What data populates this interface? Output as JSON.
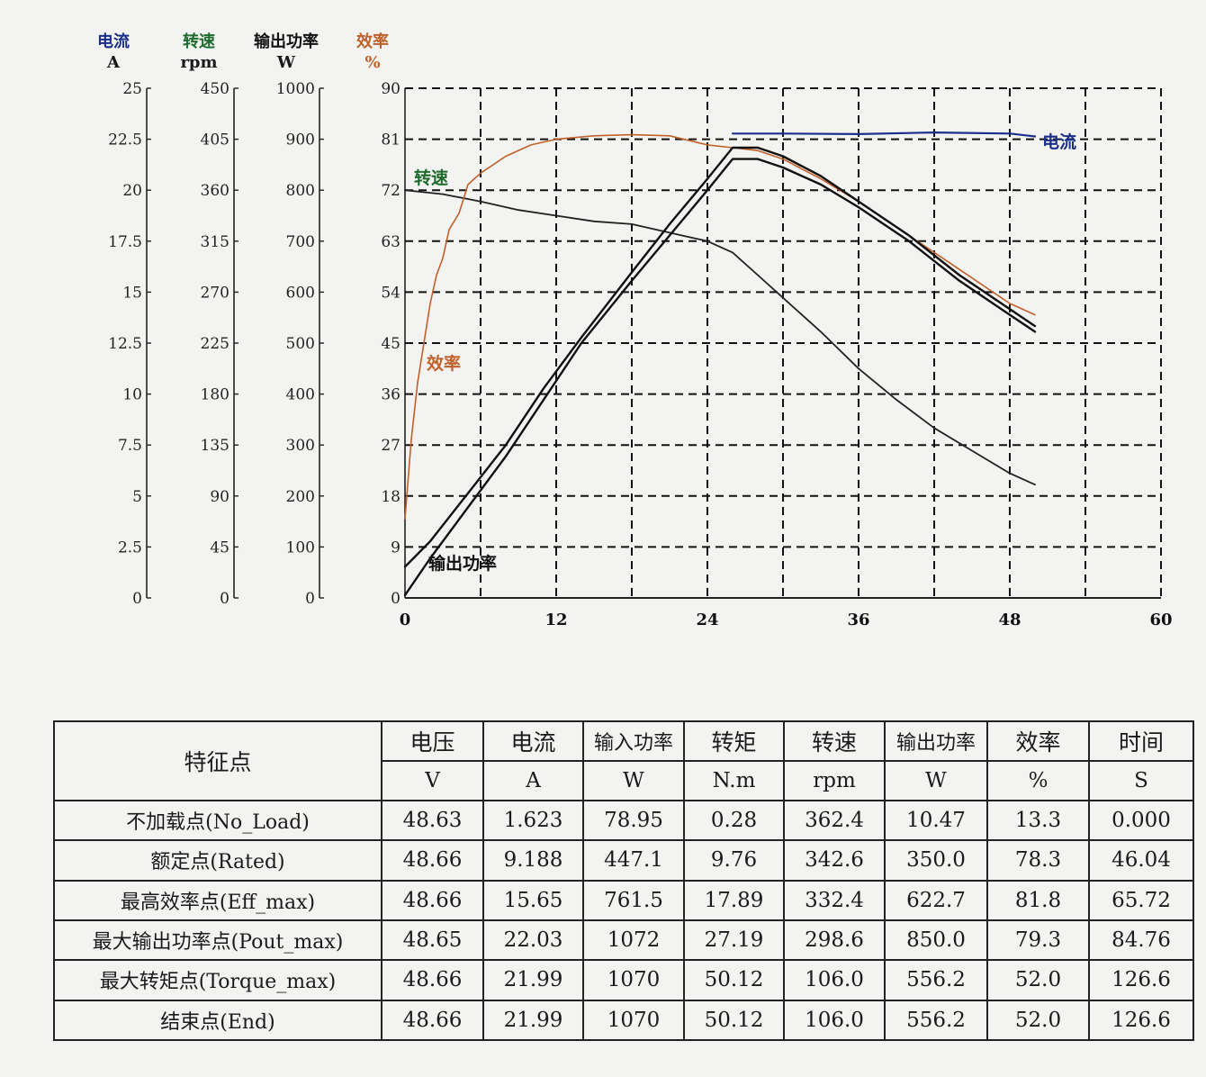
{
  "chart_data": {
    "type": "line",
    "x": {
      "min": 0,
      "max": 60,
      "ticks": [
        0,
        12,
        24,
        36,
        48,
        60
      ],
      "gridlines": [
        0,
        6,
        12,
        18,
        24,
        30,
        36,
        42,
        48,
        54,
        60
      ]
    },
    "grid": true,
    "axes": [
      {
        "id": "current",
        "name": "电流",
        "unit": "A",
        "color": "#1a2f8a",
        "min": 0,
        "max": 25,
        "ticks": [
          "0",
          "2.5",
          "5",
          "7.5",
          "10",
          "12.5",
          "15",
          "17.5",
          "20",
          "22.5",
          "25"
        ]
      },
      {
        "id": "speed",
        "name": "转速",
        "unit": "rpm",
        "color": "#1d6a2c",
        "min": 0,
        "max": 450,
        "ticks": [
          "0",
          "45",
          "90",
          "135",
          "180",
          "225",
          "270",
          "315",
          "360",
          "405",
          "450"
        ]
      },
      {
        "id": "power",
        "name": "输出功率",
        "unit": "W",
        "color": "#111111",
        "min": 0,
        "max": 1000,
        "ticks": [
          "0",
          "100",
          "200",
          "300",
          "400",
          "500",
          "600",
          "700",
          "800",
          "900",
          "1000"
        ]
      },
      {
        "id": "efficiency",
        "name": "效率",
        "unit": "%",
        "color": "#c0602a",
        "min": 0,
        "max": 90,
        "ticks": [
          "0",
          "9",
          "18",
          "27",
          "36",
          "45",
          "54",
          "63",
          "72",
          "81",
          "90"
        ]
      }
    ],
    "series": [
      {
        "name": "电流",
        "axis": "efficiency",
        "color": "#1a2f8a",
        "width": 2.2,
        "points": [
          [
            26,
            82
          ],
          [
            30,
            82
          ],
          [
            36,
            81.9
          ],
          [
            42,
            82.2
          ],
          [
            48,
            82
          ],
          [
            50,
            81.5
          ]
        ]
      },
      {
        "name": "转速",
        "axis": "efficiency",
        "color": "#222222",
        "width": 1.8,
        "points": [
          [
            0,
            72
          ],
          [
            3,
            71.3
          ],
          [
            6,
            70
          ],
          [
            9,
            68.5
          ],
          [
            12,
            67.5
          ],
          [
            15,
            66.5
          ],
          [
            18,
            66
          ],
          [
            21,
            64.5
          ],
          [
            24,
            63
          ],
          [
            26,
            61
          ],
          [
            28,
            57
          ],
          [
            30,
            53
          ],
          [
            33,
            47
          ],
          [
            36,
            40.5
          ],
          [
            39,
            35
          ],
          [
            42,
            30
          ],
          [
            45,
            26
          ],
          [
            48,
            22
          ],
          [
            50,
            20
          ]
        ]
      },
      {
        "name": "效率",
        "axis": "efficiency",
        "color": "#c0602a",
        "width": 1.6,
        "points": [
          [
            0,
            14
          ],
          [
            0.5,
            28
          ],
          [
            1,
            38
          ],
          [
            1.5,
            45
          ],
          [
            2,
            52
          ],
          [
            2.5,
            57
          ],
          [
            3,
            60
          ],
          [
            3.5,
            65
          ],
          [
            4.3,
            68
          ],
          [
            5,
            73
          ],
          [
            6,
            75
          ],
          [
            8,
            78
          ],
          [
            10,
            80
          ],
          [
            12,
            81
          ],
          [
            15,
            81.6
          ],
          [
            18,
            81.8
          ],
          [
            21,
            81.6
          ],
          [
            24,
            80
          ],
          [
            26,
            79.5
          ],
          [
            28,
            79
          ],
          [
            30,
            77.5
          ],
          [
            33,
            74
          ],
          [
            36,
            70
          ],
          [
            40,
            64
          ],
          [
            44,
            58
          ],
          [
            48,
            52
          ],
          [
            50,
            50
          ]
        ]
      },
      {
        "name": "输出功率",
        "axis": "efficiency",
        "color": "#111111",
        "width": 2.4,
        "points": [
          [
            0,
            5.5
          ],
          [
            2,
            10
          ],
          [
            5,
            18.5
          ],
          [
            8,
            27
          ],
          [
            11,
            37
          ],
          [
            14,
            46
          ],
          [
            18,
            57.5
          ],
          [
            21,
            66
          ],
          [
            24,
            74
          ],
          [
            26,
            79.5
          ],
          [
            28,
            79.5
          ],
          [
            30,
            78
          ],
          [
            33,
            74.5
          ],
          [
            36,
            70
          ],
          [
            40,
            64
          ],
          [
            44,
            57
          ],
          [
            48,
            51
          ],
          [
            50,
            48
          ]
        ]
      },
      {
        "name": "",
        "axis": "efficiency",
        "color": "#111111",
        "width": 2.4,
        "points": [
          [
            0,
            0.5
          ],
          [
            2,
            7
          ],
          [
            5,
            16
          ],
          [
            8,
            25
          ],
          [
            11,
            35
          ],
          [
            14,
            45
          ],
          [
            18,
            56
          ],
          [
            21,
            64
          ],
          [
            24,
            72
          ],
          [
            26,
            77.5
          ],
          [
            28,
            77.5
          ],
          [
            30,
            76
          ],
          [
            33,
            73
          ],
          [
            36,
            69
          ],
          [
            40,
            63
          ],
          [
            44,
            56
          ],
          [
            48,
            50
          ],
          [
            50,
            47
          ]
        ]
      }
    ],
    "annotations": [
      {
        "text": "电流",
        "color": "#1a2f8a"
      },
      {
        "text": "转速",
        "color": "#1d6a2c"
      },
      {
        "text": "效率",
        "color": "#c0602a"
      },
      {
        "text": "输出功率",
        "color": "#111111"
      }
    ]
  },
  "table": {
    "header_rowname": "特征点",
    "columns": [
      {
        "name": "电压",
        "unit": "V"
      },
      {
        "name": "电流",
        "unit": "A"
      },
      {
        "name": "输入功率",
        "unit": "W"
      },
      {
        "name": "转矩",
        "unit": "N.m"
      },
      {
        "name": "转速",
        "unit": "rpm"
      },
      {
        "name": "输出功率",
        "unit": "W"
      },
      {
        "name": "效率",
        "unit": "%"
      },
      {
        "name": "时间",
        "unit": "S"
      }
    ],
    "rows": [
      {
        "label": "不加载点(No_Load)",
        "values": [
          "48.63",
          "1.623",
          "78.95",
          "0.28",
          "362.4",
          "10.47",
          "13.3",
          "0.000"
        ]
      },
      {
        "label": "额定点(Rated)",
        "values": [
          "48.66",
          "9.188",
          "447.1",
          "9.76",
          "342.6",
          "350.0",
          "78.3",
          "46.04"
        ]
      },
      {
        "label": "最高效率点(Eff_max)",
        "values": [
          "48.66",
          "15.65",
          "761.5",
          "17.89",
          "332.4",
          "622.7",
          "81.8",
          "65.72"
        ]
      },
      {
        "label": "最大输出功率点(Pout_max)",
        "values": [
          "48.65",
          "22.03",
          "1072",
          "27.19",
          "298.6",
          "850.0",
          "79.3",
          "84.76"
        ]
      },
      {
        "label": "最大转矩点(Torque_max)",
        "values": [
          "48.66",
          "21.99",
          "1070",
          "50.12",
          "106.0",
          "556.2",
          "52.0",
          "126.6"
        ]
      },
      {
        "label": "结束点(End)",
        "values": [
          "48.66",
          "21.99",
          "1070",
          "50.12",
          "106.0",
          "556.2",
          "52.0",
          "126.6"
        ]
      }
    ]
  }
}
